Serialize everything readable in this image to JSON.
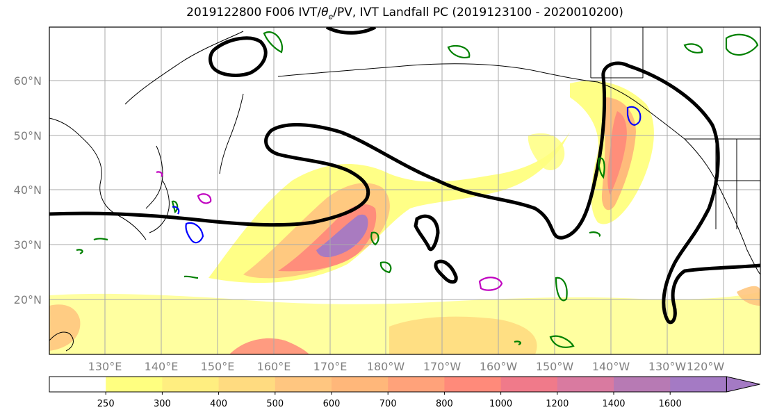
{
  "title": {
    "main": "2019122800 F006 IVT/",
    "theta": "θ",
    "theta_sub": "e",
    "rest": "/PV, IVT Landfall PC (2019123100 - 2020010200)"
  },
  "axes": {
    "lat_labels": [
      "60°N",
      "50°N",
      "40°N",
      "30°N",
      "20°N"
    ],
    "lon_labels": [
      "130°E",
      "140°E",
      "150°E",
      "160°E",
      "170°E",
      "180°W",
      "170°W",
      "160°W",
      "150°W",
      "140°W",
      "130°W",
      "120°W"
    ]
  },
  "colorbar": {
    "levels": [
      "250",
      "300",
      "400",
      "500",
      "600",
      "700",
      "800",
      "1000",
      "1200",
      "1400",
      "1600"
    ],
    "colors": [
      "#ffffff",
      "#ffff80",
      "#ffee80",
      "#ffdb80",
      "#ffc680",
      "#ffb77a",
      "#ffa27a",
      "#ff8a7a",
      "#f07a8a",
      "#d97aa0",
      "#b77ab4",
      "#a47ac4"
    ]
  },
  "colors": {
    "pc_contour": "#000000",
    "pv_contour": "#008000",
    "theta_contour_a": "#0000ff",
    "theta_contour_b": "#c000c0",
    "coastline": "#000000",
    "grid": "#aaaaaa"
  }
}
